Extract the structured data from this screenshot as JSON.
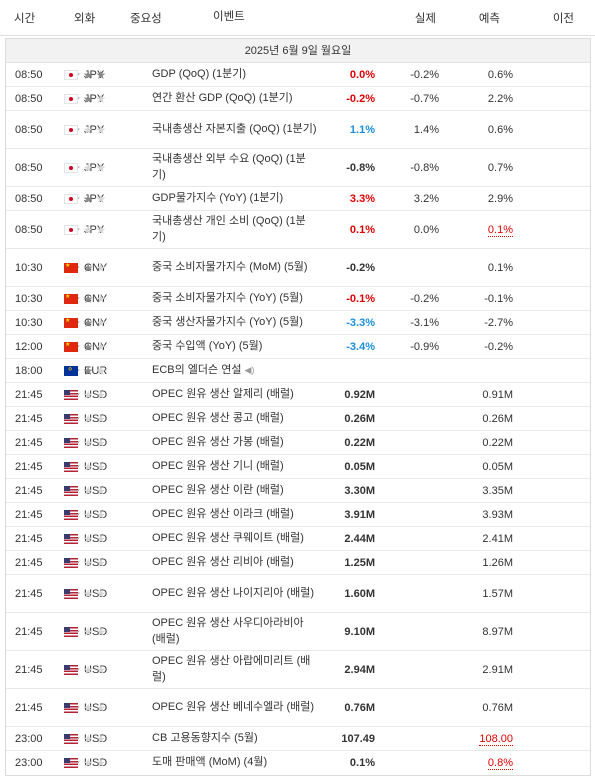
{
  "header": {
    "time": "시간",
    "currency": "외화",
    "importance": "중요성",
    "event": "이벤트",
    "actual": "실제",
    "forecast": "예측",
    "previous": "이전"
  },
  "date_label": "2025년 6월 9일 월요일",
  "icons": {
    "star_filled": "★",
    "star_empty": "☆",
    "speaker": "🔊"
  },
  "colors": {
    "negative": "#e00000",
    "positive": "#1a8fd8"
  },
  "rows": [
    {
      "time": "08:50",
      "flag": "jp",
      "currency": "JPY",
      "stars": 3,
      "event": "GDP (QoQ) (1분기)",
      "actual": "0.0%",
      "actual_color": "neg",
      "forecast": "-0.2%",
      "previous": "0.6%",
      "prev_revised": false,
      "tall": false
    },
    {
      "time": "08:50",
      "flag": "jp",
      "currency": "JPY",
      "stars": 2,
      "event": "연간 환산 GDP (QoQ) (1분기)",
      "actual": "-0.2%",
      "actual_color": "neg",
      "forecast": "-0.7%",
      "previous": "2.2%",
      "prev_revised": false,
      "tall": false
    },
    {
      "time": "08:50",
      "flag": "jp",
      "currency": "JPY",
      "stars": 1,
      "event": "국내총생산 자본지출 (QoQ) (1분기)",
      "actual": "1.1%",
      "actual_color": "pos",
      "forecast": "1.4%",
      "previous": "0.6%",
      "prev_revised": false,
      "tall": true
    },
    {
      "time": "08:50",
      "flag": "jp",
      "currency": "JPY",
      "stars": 1,
      "event": "국내총생산 외부 수요 (QoQ) (1분기)",
      "actual": "-0.8%",
      "actual_color": "nu",
      "forecast": "-0.8%",
      "previous": "0.7%",
      "prev_revised": false,
      "tall": true
    },
    {
      "time": "08:50",
      "flag": "jp",
      "currency": "JPY",
      "stars": 2,
      "event": "GDP물가지수 (YoY) (1분기)",
      "actual": "3.3%",
      "actual_color": "neg",
      "forecast": "3.2%",
      "previous": "2.9%",
      "prev_revised": false,
      "tall": false
    },
    {
      "time": "08:50",
      "flag": "jp",
      "currency": "JPY",
      "stars": 1,
      "event": "국내총생산 개인 소비 (QoQ) (1분기)",
      "actual": "0.1%",
      "actual_color": "neg",
      "forecast": "0.0%",
      "previous": "0.1%",
      "prev_revised": true,
      "tall": true
    },
    {
      "time": "10:30",
      "flag": "cn",
      "currency": "CNY",
      "stars": 2,
      "event": "중국 소비자물가지수 (MoM) (5월)",
      "actual": "-0.2%",
      "actual_color": "nu",
      "forecast": "",
      "previous": "0.1%",
      "prev_revised": false,
      "tall": true
    },
    {
      "time": "10:30",
      "flag": "cn",
      "currency": "CNY",
      "stars": 2,
      "event": "중국 소비자물가지수 (YoY) (5월)",
      "actual": "-0.1%",
      "actual_color": "neg",
      "forecast": "-0.2%",
      "previous": "-0.1%",
      "prev_revised": false,
      "tall": false
    },
    {
      "time": "10:30",
      "flag": "cn",
      "currency": "CNY",
      "stars": 2,
      "event": "중국 생산자물가지수 (YoY) (5월)",
      "actual": "-3.3%",
      "actual_color": "pos",
      "forecast": "-3.1%",
      "previous": "-2.7%",
      "prev_revised": false,
      "tall": false
    },
    {
      "time": "12:00",
      "flag": "cn",
      "currency": "CNY",
      "stars": 2,
      "event": "중국 수입액 (YoY) (5월)",
      "actual": "-3.4%",
      "actual_color": "pos",
      "forecast": "-0.9%",
      "previous": "-0.2%",
      "prev_revised": false,
      "tall": false
    },
    {
      "time": "18:00",
      "flag": "eu",
      "currency": "EUR",
      "stars": 2,
      "event": "ECB의 엘더슨 연설",
      "actual": "",
      "actual_color": "nu",
      "forecast": "",
      "previous": "",
      "prev_revised": false,
      "tall": false,
      "speech": true
    },
    {
      "time": "21:45",
      "flag": "us",
      "currency": "USD",
      "stars": 1,
      "event": "OPEC 원유 생산 알제리 (배럴)",
      "actual": "0.92M",
      "actual_color": "nu",
      "forecast": "",
      "previous": "0.91M",
      "prev_revised": false,
      "tall": false
    },
    {
      "time": "21:45",
      "flag": "us",
      "currency": "USD",
      "stars": 1,
      "event": "OPEC 원유 생산 콩고 (배럴)",
      "actual": "0.26M",
      "actual_color": "nu",
      "forecast": "",
      "previous": "0.26M",
      "prev_revised": false,
      "tall": false
    },
    {
      "time": "21:45",
      "flag": "us",
      "currency": "USD",
      "stars": 1,
      "event": "OPEC 원유 생산 가봉 (배럴)",
      "actual": "0.22M",
      "actual_color": "nu",
      "forecast": "",
      "previous": "0.22M",
      "prev_revised": false,
      "tall": false
    },
    {
      "time": "21:45",
      "flag": "us",
      "currency": "USD",
      "stars": 1,
      "event": "OPEC 원유 생산 기니 (배럴)",
      "actual": "0.05M",
      "actual_color": "nu",
      "forecast": "",
      "previous": "0.05M",
      "prev_revised": false,
      "tall": false
    },
    {
      "time": "21:45",
      "flag": "us",
      "currency": "USD",
      "stars": 1,
      "event": "OPEC 원유 생산 이란 (배럴)",
      "actual": "3.30M",
      "actual_color": "nu",
      "forecast": "",
      "previous": "3.35M",
      "prev_revised": false,
      "tall": false
    },
    {
      "time": "21:45",
      "flag": "us",
      "currency": "USD",
      "stars": 1,
      "event": "OPEC 원유 생산 이라크 (배럴)",
      "actual": "3.91M",
      "actual_color": "nu",
      "forecast": "",
      "previous": "3.93M",
      "prev_revised": false,
      "tall": false
    },
    {
      "time": "21:45",
      "flag": "us",
      "currency": "USD",
      "stars": 1,
      "event": "OPEC 원유 생산 쿠웨이트 (배럴)",
      "actual": "2.44M",
      "actual_color": "nu",
      "forecast": "",
      "previous": "2.41M",
      "prev_revised": false,
      "tall": false
    },
    {
      "time": "21:45",
      "flag": "us",
      "currency": "USD",
      "stars": 1,
      "event": "OPEC 원유 생산 리비아 (배럴)",
      "actual": "1.25M",
      "actual_color": "nu",
      "forecast": "",
      "previous": "1.26M",
      "prev_revised": false,
      "tall": false
    },
    {
      "time": "21:45",
      "flag": "us",
      "currency": "USD",
      "stars": 1,
      "event": "OPEC 원유 생산 나이지리아 (배럴)",
      "actual": "1.60M",
      "actual_color": "nu",
      "forecast": "",
      "previous": "1.57M",
      "prev_revised": false,
      "tall": true
    },
    {
      "time": "21:45",
      "flag": "us",
      "currency": "USD",
      "stars": 1,
      "event": "OPEC 원유 생산 사우디아라비아 (배럴)",
      "actual": "9.10M",
      "actual_color": "nu",
      "forecast": "",
      "previous": "8.97M",
      "prev_revised": false,
      "tall": true
    },
    {
      "time": "21:45",
      "flag": "us",
      "currency": "USD",
      "stars": 1,
      "event": "OPEC 원유 생산 아랍에미리트 (배럴)",
      "actual": "2.94M",
      "actual_color": "nu",
      "forecast": "",
      "previous": "2.91M",
      "prev_revised": false,
      "tall": true
    },
    {
      "time": "21:45",
      "flag": "us",
      "currency": "USD",
      "stars": 1,
      "event": "OPEC 원유 생산 베네수엘라 (배럴)",
      "actual": "0.76M",
      "actual_color": "nu",
      "forecast": "",
      "previous": "0.76M",
      "prev_revised": false,
      "tall": true
    },
    {
      "time": "23:00",
      "flag": "us",
      "currency": "USD",
      "stars": 1,
      "event": "CB 고용동향지수 (5월)",
      "actual": "107.49",
      "actual_color": "nu",
      "forecast": "",
      "previous": "108.00",
      "prev_revised": true,
      "tall": false
    },
    {
      "time": "23:00",
      "flag": "us",
      "currency": "USD",
      "stars": 1,
      "event": "도매 판매액 (MoM) (4월)",
      "actual": "0.1%",
      "actual_color": "nu",
      "forecast": "",
      "previous": "0.8%",
      "prev_revised": true,
      "tall": false
    }
  ]
}
